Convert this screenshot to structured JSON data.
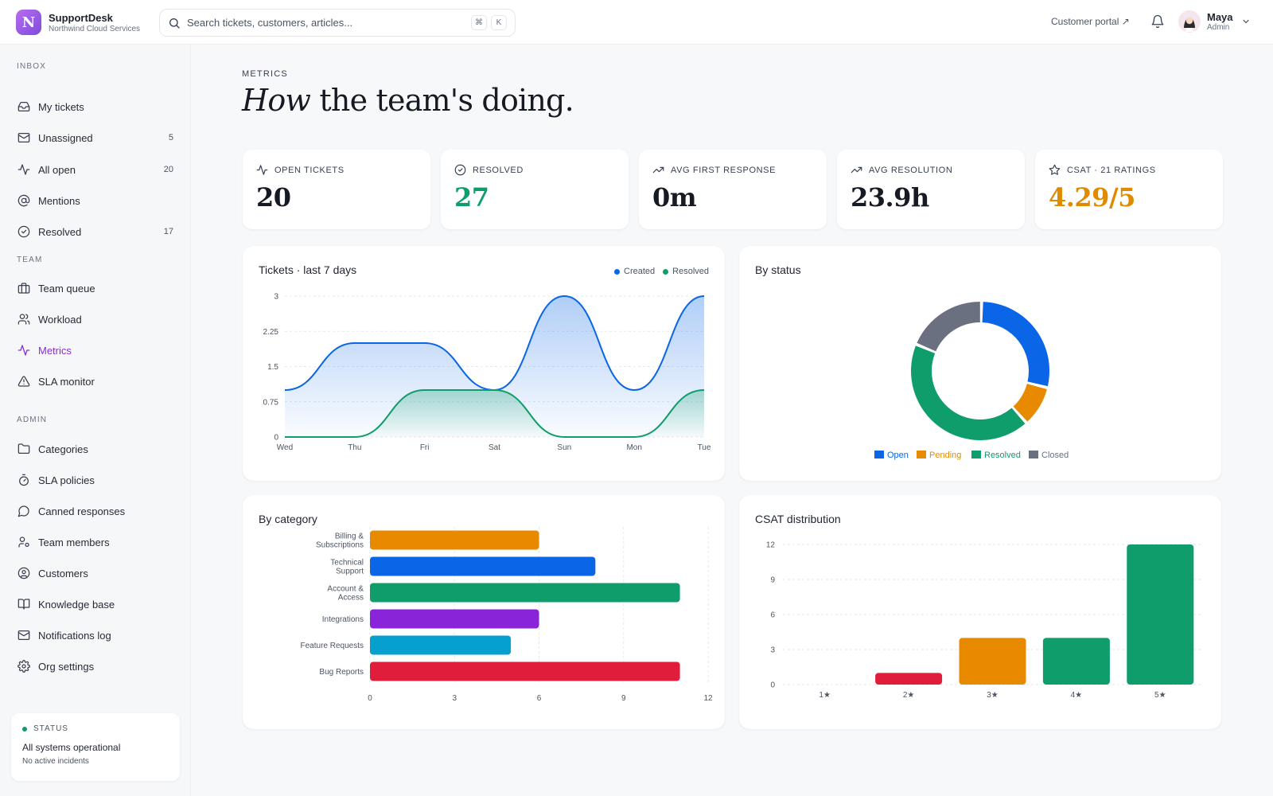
{
  "brand": {
    "logo_letter": "N",
    "name": "SupportDesk",
    "org": "Northwind Cloud Services"
  },
  "search": {
    "placeholder": "Search tickets, customers, articles...",
    "kbd": [
      "⌘",
      "K"
    ]
  },
  "header": {
    "portal_link": "Customer portal ↗",
    "user": {
      "name": "Maya",
      "role": "Admin"
    }
  },
  "sidebar": {
    "sections": [
      {
        "title": "INBOX",
        "items": [
          {
            "label": "My tickets",
            "icon": "inbox-icon",
            "count": ""
          },
          {
            "label": "Unassigned",
            "icon": "mail-icon",
            "count": "5"
          },
          {
            "label": "All open",
            "icon": "activity-icon",
            "count": "20"
          },
          {
            "label": "Mentions",
            "icon": "at-sign-icon",
            "count": ""
          },
          {
            "label": "Resolved",
            "icon": "check-circle-icon",
            "count": "17"
          }
        ]
      },
      {
        "title": "TEAM",
        "items": [
          {
            "label": "Team queue",
            "icon": "briefcase-icon",
            "count": ""
          },
          {
            "label": "Workload",
            "icon": "users-icon",
            "count": ""
          },
          {
            "label": "Metrics",
            "icon": "activity-icon",
            "count": "",
            "active": true
          },
          {
            "label": "SLA monitor",
            "icon": "alert-triangle-icon",
            "count": ""
          }
        ]
      },
      {
        "title": "ADMIN",
        "items": [
          {
            "label": "Categories",
            "icon": "folder-icon",
            "count": ""
          },
          {
            "label": "SLA policies",
            "icon": "timer-icon",
            "count": ""
          },
          {
            "label": "Canned responses",
            "icon": "message-circle-icon",
            "count": ""
          },
          {
            "label": "Team members",
            "icon": "user-cog-icon",
            "count": ""
          },
          {
            "label": "Customers",
            "icon": "user-circle-icon",
            "count": ""
          },
          {
            "label": "Knowledge base",
            "icon": "book-icon",
            "count": ""
          },
          {
            "label": "Notifications log",
            "icon": "mail-icon",
            "count": ""
          },
          {
            "label": "Org settings",
            "icon": "gear-icon",
            "count": ""
          }
        ]
      }
    ],
    "status": {
      "label": "STATUS",
      "title": "All systems operational",
      "subtitle": "No active incidents"
    }
  },
  "page": {
    "eyebrow": "METRICS",
    "headline_italic": "How",
    "headline_rest": " the team's doing."
  },
  "kpis": [
    {
      "label": "OPEN TICKETS",
      "value": "20",
      "icon": "activity-icon",
      "color": "#161a22"
    },
    {
      "label": "RESOLVED",
      "value": "27",
      "icon": "check-circle-icon",
      "color": "#0f9d6b"
    },
    {
      "label": "AVG FIRST RESPONSE",
      "value": "0m",
      "icon": "trending-up-icon",
      "color": "#161a22"
    },
    {
      "label": "AVG RESOLUTION",
      "value": "23.9h",
      "icon": "trending-up-icon",
      "color": "#161a22"
    },
    {
      "label": "CSAT · 21 RATINGS",
      "value": "4.29/5",
      "icon": "star-icon",
      "color": "#e08a00"
    }
  ],
  "colors": {
    "accent": "#8a2bd6",
    "open": "#0a66e6",
    "pending": "#e88a00",
    "resolved": "#0f9d6b",
    "closed": "#6b7080",
    "red": "#e01e3c",
    "purple": "#8a24d8",
    "cyan": "#06a0cf"
  },
  "chart_data": [
    {
      "type": "area",
      "title": "Tickets · last 7 days",
      "categories": [
        "Wed",
        "Thu",
        "Fri",
        "Sat",
        "Sun",
        "Mon",
        "Tue"
      ],
      "series": [
        {
          "name": "Created",
          "values": [
            1,
            2,
            2,
            1,
            3,
            1,
            3
          ],
          "color": "#0a66e6"
        },
        {
          "name": "Resolved",
          "values": [
            0,
            0,
            1,
            1,
            0,
            0,
            1
          ],
          "color": "#0f9d6b"
        }
      ],
      "yticks": [
        "0",
        "0.75",
        "1.5",
        "2.25",
        "3"
      ],
      "ylim": [
        0,
        3
      ],
      "legend": "top-right",
      "grid": true
    },
    {
      "type": "pie",
      "title": "By status",
      "categories": [
        "Open",
        "Pending",
        "Resolved",
        "Closed"
      ],
      "values": [
        6,
        2,
        9,
        4
      ],
      "colors": [
        "#0a66e6",
        "#e88a00",
        "#0f9d6b",
        "#6b7080"
      ],
      "legend": "bottom"
    },
    {
      "type": "bar",
      "orientation": "horizontal",
      "title": "By category",
      "categories": [
        [
          "Billing &",
          "Subscriptions"
        ],
        [
          "Technical",
          "Support"
        ],
        [
          "Account &",
          "Access"
        ],
        [
          "Integrations"
        ],
        [
          "Feature Requests"
        ],
        [
          "Bug Reports"
        ]
      ],
      "values": [
        6,
        8,
        11,
        6,
        5,
        11
      ],
      "colors": [
        "#e88a00",
        "#0a66e6",
        "#0f9d6b",
        "#8a24d8",
        "#06a0cf",
        "#e01e3c"
      ],
      "xticks": [
        "0",
        "3",
        "6",
        "9",
        "12"
      ],
      "xlim": [
        0,
        12
      ],
      "grid": true
    },
    {
      "type": "bar",
      "title": "CSAT distribution",
      "categories": [
        "1★",
        "2★",
        "3★",
        "4★",
        "5★"
      ],
      "values": [
        0,
        1,
        4,
        4,
        12
      ],
      "colors": [
        "#e01e3c",
        "#e01e3c",
        "#e88a00",
        "#0f9d6b",
        "#0f9d6b"
      ],
      "yticks": [
        "0",
        "3",
        "6",
        "9",
        "12"
      ],
      "ylim": [
        0,
        12
      ],
      "grid": true
    }
  ]
}
